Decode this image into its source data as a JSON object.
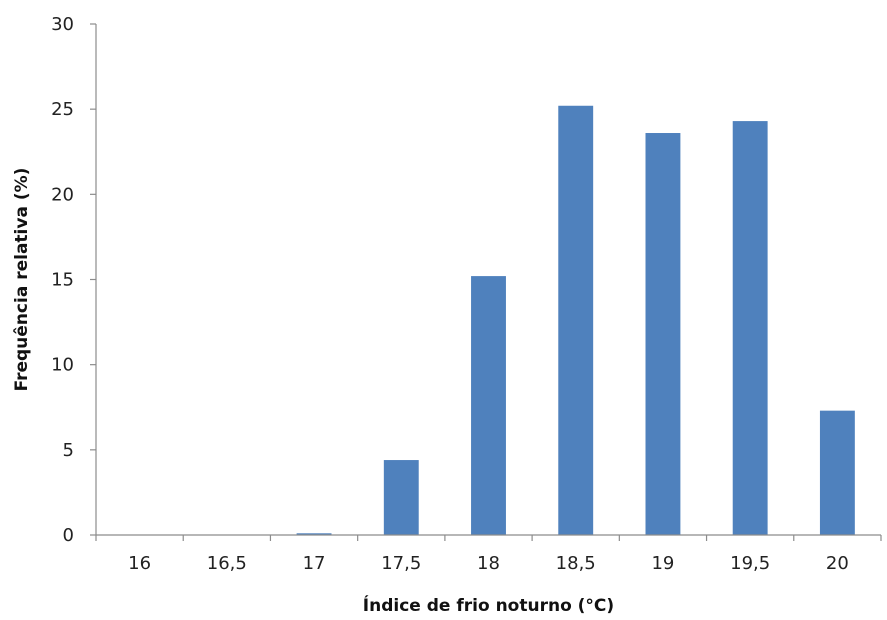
{
  "chart_data": {
    "type": "bar",
    "categories": [
      "16",
      "16,5",
      "17",
      "17,5",
      "18",
      "18,5",
      "19",
      "19,5",
      "20"
    ],
    "values": [
      0,
      0,
      0.1,
      4.4,
      15.2,
      25.2,
      23.6,
      24.3,
      7.3
    ],
    "xlabel": "Índice de frio noturno (°C)",
    "ylabel": "Frequência relativa (%)",
    "ylim": [
      0,
      30
    ],
    "yticks": [
      0,
      5,
      10,
      15,
      20,
      25,
      30
    ],
    "grid": false,
    "legend": "none",
    "bar_color": "#4f81bd"
  }
}
